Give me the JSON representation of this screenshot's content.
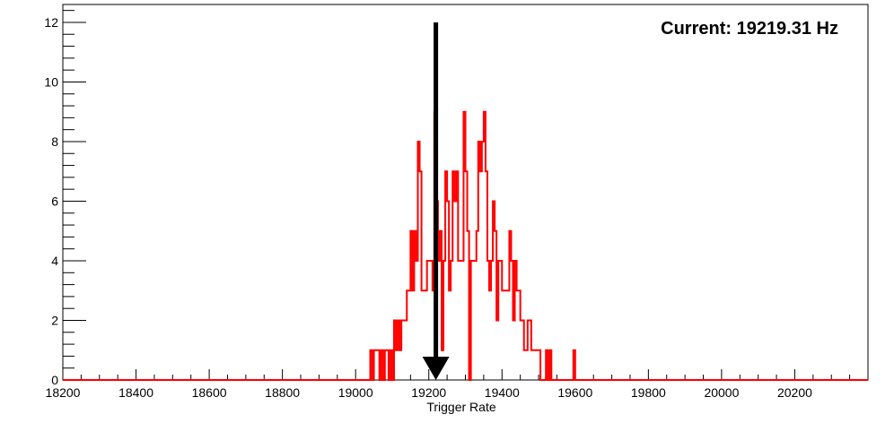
{
  "chart_data": {
    "type": "histogram",
    "xlabel": "Trigger Rate",
    "ylabel": "",
    "xlim": [
      18200,
      20400
    ],
    "ylim": [
      0,
      12.6
    ],
    "x_ticks": [
      18200,
      18400,
      18600,
      18800,
      19000,
      19200,
      19400,
      19600,
      19800,
      20000,
      20200
    ],
    "y_ticks": [
      0,
      2,
      4,
      6,
      8,
      10,
      12
    ],
    "grid": false,
    "bin_width": 5,
    "series": [
      {
        "color": "#ff0000",
        "bins": [
          [
            19040,
            1
          ],
          [
            19045,
            0
          ],
          [
            19050,
            1
          ],
          [
            19055,
            1
          ],
          [
            19060,
            1
          ],
          [
            19065,
            0
          ],
          [
            19070,
            1
          ],
          [
            19075,
            0
          ],
          [
            19080,
            1
          ],
          [
            19085,
            1
          ],
          [
            19090,
            0
          ],
          [
            19095,
            1
          ],
          [
            19100,
            0
          ],
          [
            19105,
            2
          ],
          [
            19110,
            1
          ],
          [
            19115,
            2
          ],
          [
            19120,
            1
          ],
          [
            19125,
            2
          ],
          [
            19130,
            2
          ],
          [
            19135,
            2
          ],
          [
            19140,
            3
          ],
          [
            19145,
            3
          ],
          [
            19150,
            5
          ],
          [
            19155,
            3
          ],
          [
            19160,
            5
          ],
          [
            19165,
            4
          ],
          [
            19170,
            8
          ],
          [
            19175,
            7
          ],
          [
            19180,
            3
          ],
          [
            19185,
            3
          ],
          [
            19190,
            3
          ],
          [
            19195,
            4
          ],
          [
            19200,
            4
          ],
          [
            19205,
            4
          ],
          [
            19210,
            3
          ],
          [
            19215,
            9
          ],
          [
            19220,
            6
          ],
          [
            19225,
            4
          ],
          [
            19230,
            5
          ],
          [
            19235,
            1
          ],
          [
            19240,
            4
          ],
          [
            19245,
            7
          ],
          [
            19250,
            6
          ],
          [
            19255,
            3
          ],
          [
            19260,
            4
          ],
          [
            19265,
            7
          ],
          [
            19270,
            6
          ],
          [
            19275,
            7
          ],
          [
            19280,
            4
          ],
          [
            19285,
            4
          ],
          [
            19290,
            4
          ],
          [
            19295,
            9
          ],
          [
            19300,
            7
          ],
          [
            19305,
            5
          ],
          [
            19310,
            0
          ],
          [
            19315,
            4
          ],
          [
            19320,
            4
          ],
          [
            19325,
            4
          ],
          [
            19330,
            5
          ],
          [
            19335,
            8
          ],
          [
            19340,
            7
          ],
          [
            19345,
            8
          ],
          [
            19350,
            9
          ],
          [
            19355,
            7
          ],
          [
            19360,
            4
          ],
          [
            19365,
            3
          ],
          [
            19370,
            4
          ],
          [
            19375,
            6
          ],
          [
            19380,
            5
          ],
          [
            19385,
            2
          ],
          [
            19390,
            4
          ],
          [
            19395,
            4
          ],
          [
            19400,
            3
          ],
          [
            19405,
            3
          ],
          [
            19410,
            3
          ],
          [
            19415,
            3
          ],
          [
            19420,
            5
          ],
          [
            19425,
            4
          ],
          [
            19430,
            2
          ],
          [
            19435,
            4
          ],
          [
            19440,
            3
          ],
          [
            19445,
            3
          ],
          [
            19450,
            2
          ],
          [
            19455,
            2
          ],
          [
            19460,
            1
          ],
          [
            19465,
            1
          ],
          [
            19470,
            2
          ],
          [
            19475,
            2
          ],
          [
            19480,
            1
          ],
          [
            19485,
            1
          ],
          [
            19490,
            1
          ],
          [
            19495,
            1
          ],
          [
            19500,
            1
          ],
          [
            19505,
            0
          ],
          [
            19510,
            0
          ],
          [
            19515,
            0
          ],
          [
            19520,
            1
          ],
          [
            19525,
            0
          ],
          [
            19530,
            1
          ],
          [
            19535,
            0
          ],
          [
            19540,
            0
          ],
          [
            19545,
            0
          ],
          [
            19550,
            0
          ],
          [
            19555,
            0
          ],
          [
            19560,
            0
          ],
          [
            19565,
            0
          ],
          [
            19570,
            0
          ],
          [
            19575,
            0
          ],
          [
            19580,
            0
          ],
          [
            19585,
            0
          ],
          [
            19590,
            0
          ],
          [
            19595,
            1
          ]
        ]
      }
    ],
    "marker": {
      "type": "arrow-down",
      "x": 19219.31,
      "y_top": 12,
      "y_bottom": 0,
      "color": "#000000"
    },
    "annotation": {
      "text": "Current: 19219.31 Hz",
      "position": "top-right"
    }
  }
}
